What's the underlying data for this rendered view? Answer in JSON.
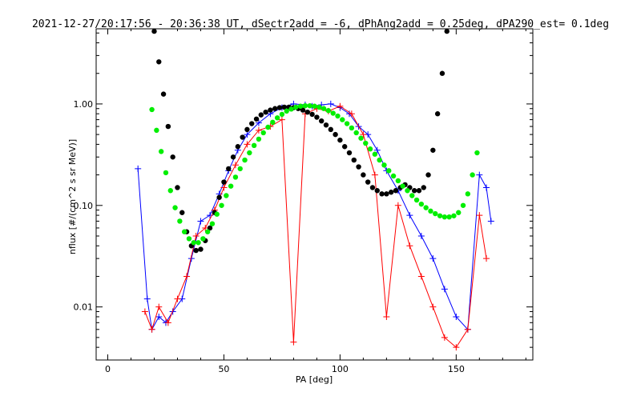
{
  "chart_data": {
    "type": "scatter",
    "title": "2021-12-27/20:17:56 - 20:36:38 UT, dSectr2add = -6, dPhAng2add = 0.25deg, dPA290_est=   0.1deg",
    "xlabel": "PA [deg]",
    "ylabel": "nflux [#/(cm^2 s sr MeV)]",
    "xlim": [
      -5,
      183
    ],
    "ylim": [
      0.003,
      5.5
    ],
    "yscale": "log",
    "xticks": [
      0,
      50,
      100,
      150
    ],
    "xtick_labels": [
      "0",
      "50",
      "100",
      "150"
    ],
    "yticks": [
      0.01,
      0.1,
      1.0
    ],
    "ytick_labels": [
      "0.01",
      "0.10",
      "1.00"
    ],
    "grid": false,
    "colors": {
      "series_a": "#ff0000",
      "series_b": "#0000ff",
      "fit_black": "#000000",
      "fit_green": "#00ee00"
    },
    "series": [
      {
        "color": "#0000ff",
        "marker": "plus",
        "x": [
          13,
          17,
          19,
          22,
          25,
          28,
          32,
          36,
          40,
          44,
          48,
          52,
          56,
          60,
          65,
          70,
          75,
          80,
          85,
          88,
          92,
          96,
          100,
          104,
          108,
          112,
          116,
          120,
          125,
          130,
          135,
          140,
          145,
          150,
          155,
          160,
          163,
          165
        ],
        "y": [
          0.23,
          0.012,
          0.006,
          0.008,
          0.007,
          0.009,
          0.012,
          0.03,
          0.07,
          0.08,
          0.13,
          0.22,
          0.35,
          0.5,
          0.65,
          0.8,
          0.92,
          1.0,
          0.98,
          0.95,
          0.98,
          1.0,
          0.92,
          0.8,
          0.6,
          0.5,
          0.35,
          0.22,
          0.14,
          0.08,
          0.05,
          0.03,
          0.015,
          0.008,
          0.006,
          0.2,
          0.15,
          0.07
        ]
      },
      {
        "color": "#ff0000",
        "marker": "plus",
        "x": [
          16,
          19,
          22,
          26,
          30,
          34,
          38,
          42,
          46,
          50,
          55,
          60,
          65,
          70,
          75,
          80,
          85,
          90,
          95,
          100,
          105,
          110,
          115,
          120,
          125,
          130,
          135,
          140,
          145,
          150,
          155,
          160,
          163
        ],
        "y": [
          0.009,
          0.006,
          0.01,
          0.007,
          0.012,
          0.02,
          0.05,
          0.06,
          0.09,
          0.15,
          0.25,
          0.4,
          0.55,
          0.6,
          0.7,
          0.0045,
          0.8,
          0.9,
          0.85,
          0.95,
          0.8,
          0.5,
          0.2,
          0.008,
          0.1,
          0.04,
          0.02,
          0.01,
          0.005,
          0.004,
          0.006,
          0.08,
          0.03
        ]
      },
      {
        "color": "#000000",
        "marker": "filled-circle",
        "x": [
          20,
          22,
          24,
          26,
          28,
          30,
          32,
          34,
          36,
          38,
          40,
          42,
          44,
          46,
          48,
          50,
          52,
          54,
          56,
          58,
          60,
          62,
          64,
          66,
          68,
          70,
          72,
          74,
          76,
          78,
          80,
          82,
          84,
          86,
          88,
          90,
          92,
          94,
          96,
          98,
          100,
          102,
          104,
          106,
          108,
          110,
          112,
          114,
          116,
          118,
          120,
          122,
          124,
          126,
          128,
          130,
          132,
          134,
          136,
          138,
          140,
          142,
          144,
          146
        ],
        "y": [
          5.2,
          2.6,
          1.25,
          0.6,
          0.3,
          0.15,
          0.085,
          0.055,
          0.04,
          0.036,
          0.037,
          0.045,
          0.06,
          0.085,
          0.12,
          0.17,
          0.23,
          0.3,
          0.38,
          0.47,
          0.56,
          0.64,
          0.71,
          0.78,
          0.83,
          0.87,
          0.9,
          0.92,
          0.93,
          0.93,
          0.92,
          0.9,
          0.87,
          0.83,
          0.79,
          0.74,
          0.68,
          0.62,
          0.56,
          0.5,
          0.44,
          0.38,
          0.33,
          0.28,
          0.24,
          0.2,
          0.17,
          0.15,
          0.14,
          0.13,
          0.13,
          0.135,
          0.14,
          0.15,
          0.16,
          0.15,
          0.14,
          0.14,
          0.15,
          0.2,
          0.35,
          0.8,
          2.0,
          5.2
        ]
      },
      {
        "color": "#00ee00",
        "marker": "filled-circle",
        "x": [
          19,
          21,
          23,
          25,
          27,
          29,
          31,
          33,
          35,
          37,
          39,
          41,
          43,
          45,
          47,
          49,
          51,
          53,
          55,
          57,
          59,
          61,
          63,
          65,
          67,
          69,
          71,
          73,
          75,
          77,
          79,
          81,
          83,
          85,
          87,
          89,
          91,
          93,
          95,
          97,
          99,
          101,
          103,
          105,
          107,
          109,
          111,
          113,
          115,
          117,
          119,
          121,
          123,
          125,
          127,
          129,
          131,
          133,
          135,
          137,
          139,
          141,
          143,
          145,
          147,
          149,
          151,
          153,
          155,
          157,
          159
        ],
        "y": [
          0.88,
          0.55,
          0.34,
          0.21,
          0.14,
          0.095,
          0.07,
          0.055,
          0.047,
          0.043,
          0.043,
          0.047,
          0.055,
          0.066,
          0.082,
          0.1,
          0.125,
          0.155,
          0.19,
          0.23,
          0.28,
          0.33,
          0.39,
          0.45,
          0.52,
          0.59,
          0.66,
          0.73,
          0.79,
          0.85,
          0.89,
          0.93,
          0.95,
          0.96,
          0.96,
          0.95,
          0.93,
          0.9,
          0.86,
          0.81,
          0.76,
          0.7,
          0.64,
          0.58,
          0.52,
          0.46,
          0.41,
          0.36,
          0.32,
          0.28,
          0.25,
          0.22,
          0.195,
          0.175,
          0.155,
          0.14,
          0.125,
          0.113,
          0.103,
          0.095,
          0.088,
          0.083,
          0.079,
          0.077,
          0.077,
          0.079,
          0.085,
          0.1,
          0.13,
          0.2,
          0.33
        ]
      }
    ]
  }
}
